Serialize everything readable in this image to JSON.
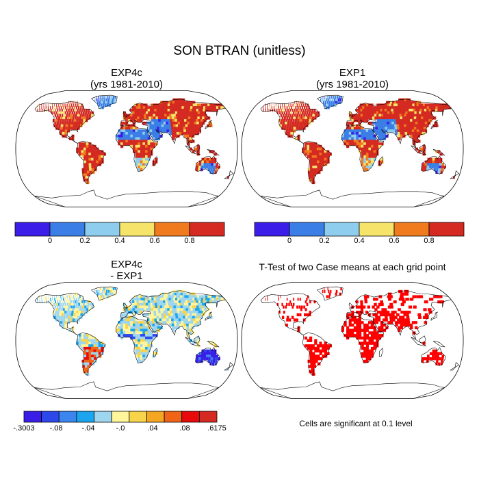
{
  "figure": {
    "main_title": "SON BTRAN (unitless)",
    "panels": [
      {
        "id": "exp4c",
        "title_line1": "EXP4c",
        "title_line2": "(yrs 1981-2010)"
      },
      {
        "id": "exp1",
        "title_line1": "EXP1",
        "title_line2": "(yrs 1981-2010)"
      },
      {
        "id": "diff",
        "title_line1": "EXP4c",
        "title_line2": "- EXP1"
      },
      {
        "id": "ttest",
        "title_line1": "T-Test of two Case means at each grid point",
        "title_line2": ""
      }
    ],
    "note": "Cells are significant at 0.1 level"
  },
  "colorbars": {
    "btran": {
      "colors": [
        "#3b1fe8",
        "#3a7ee6",
        "#8ecdee",
        "#f6e46a",
        "#f07a1e",
        "#d42a22"
      ],
      "tick_labels": [
        "0",
        "0.2",
        "0.4",
        "0.6",
        "0.8"
      ]
    },
    "diff": {
      "colors": [
        "#3a1ee8",
        "#2d48ea",
        "#3a86ee",
        "#1aa5ee",
        "#9fd6ef",
        "#fff59a",
        "#f8d44a",
        "#f5a623",
        "#f06418",
        "#e80a0a",
        "#d42a22"
      ],
      "tick_labels": [
        "-.3003",
        "-.08",
        "-.04",
        "-.0",
        ".04",
        ".08",
        ".6175"
      ]
    }
  },
  "map_colors": {
    "ocean": "#ffffff",
    "outline": "#000000",
    "significant": "#ff0000"
  }
}
